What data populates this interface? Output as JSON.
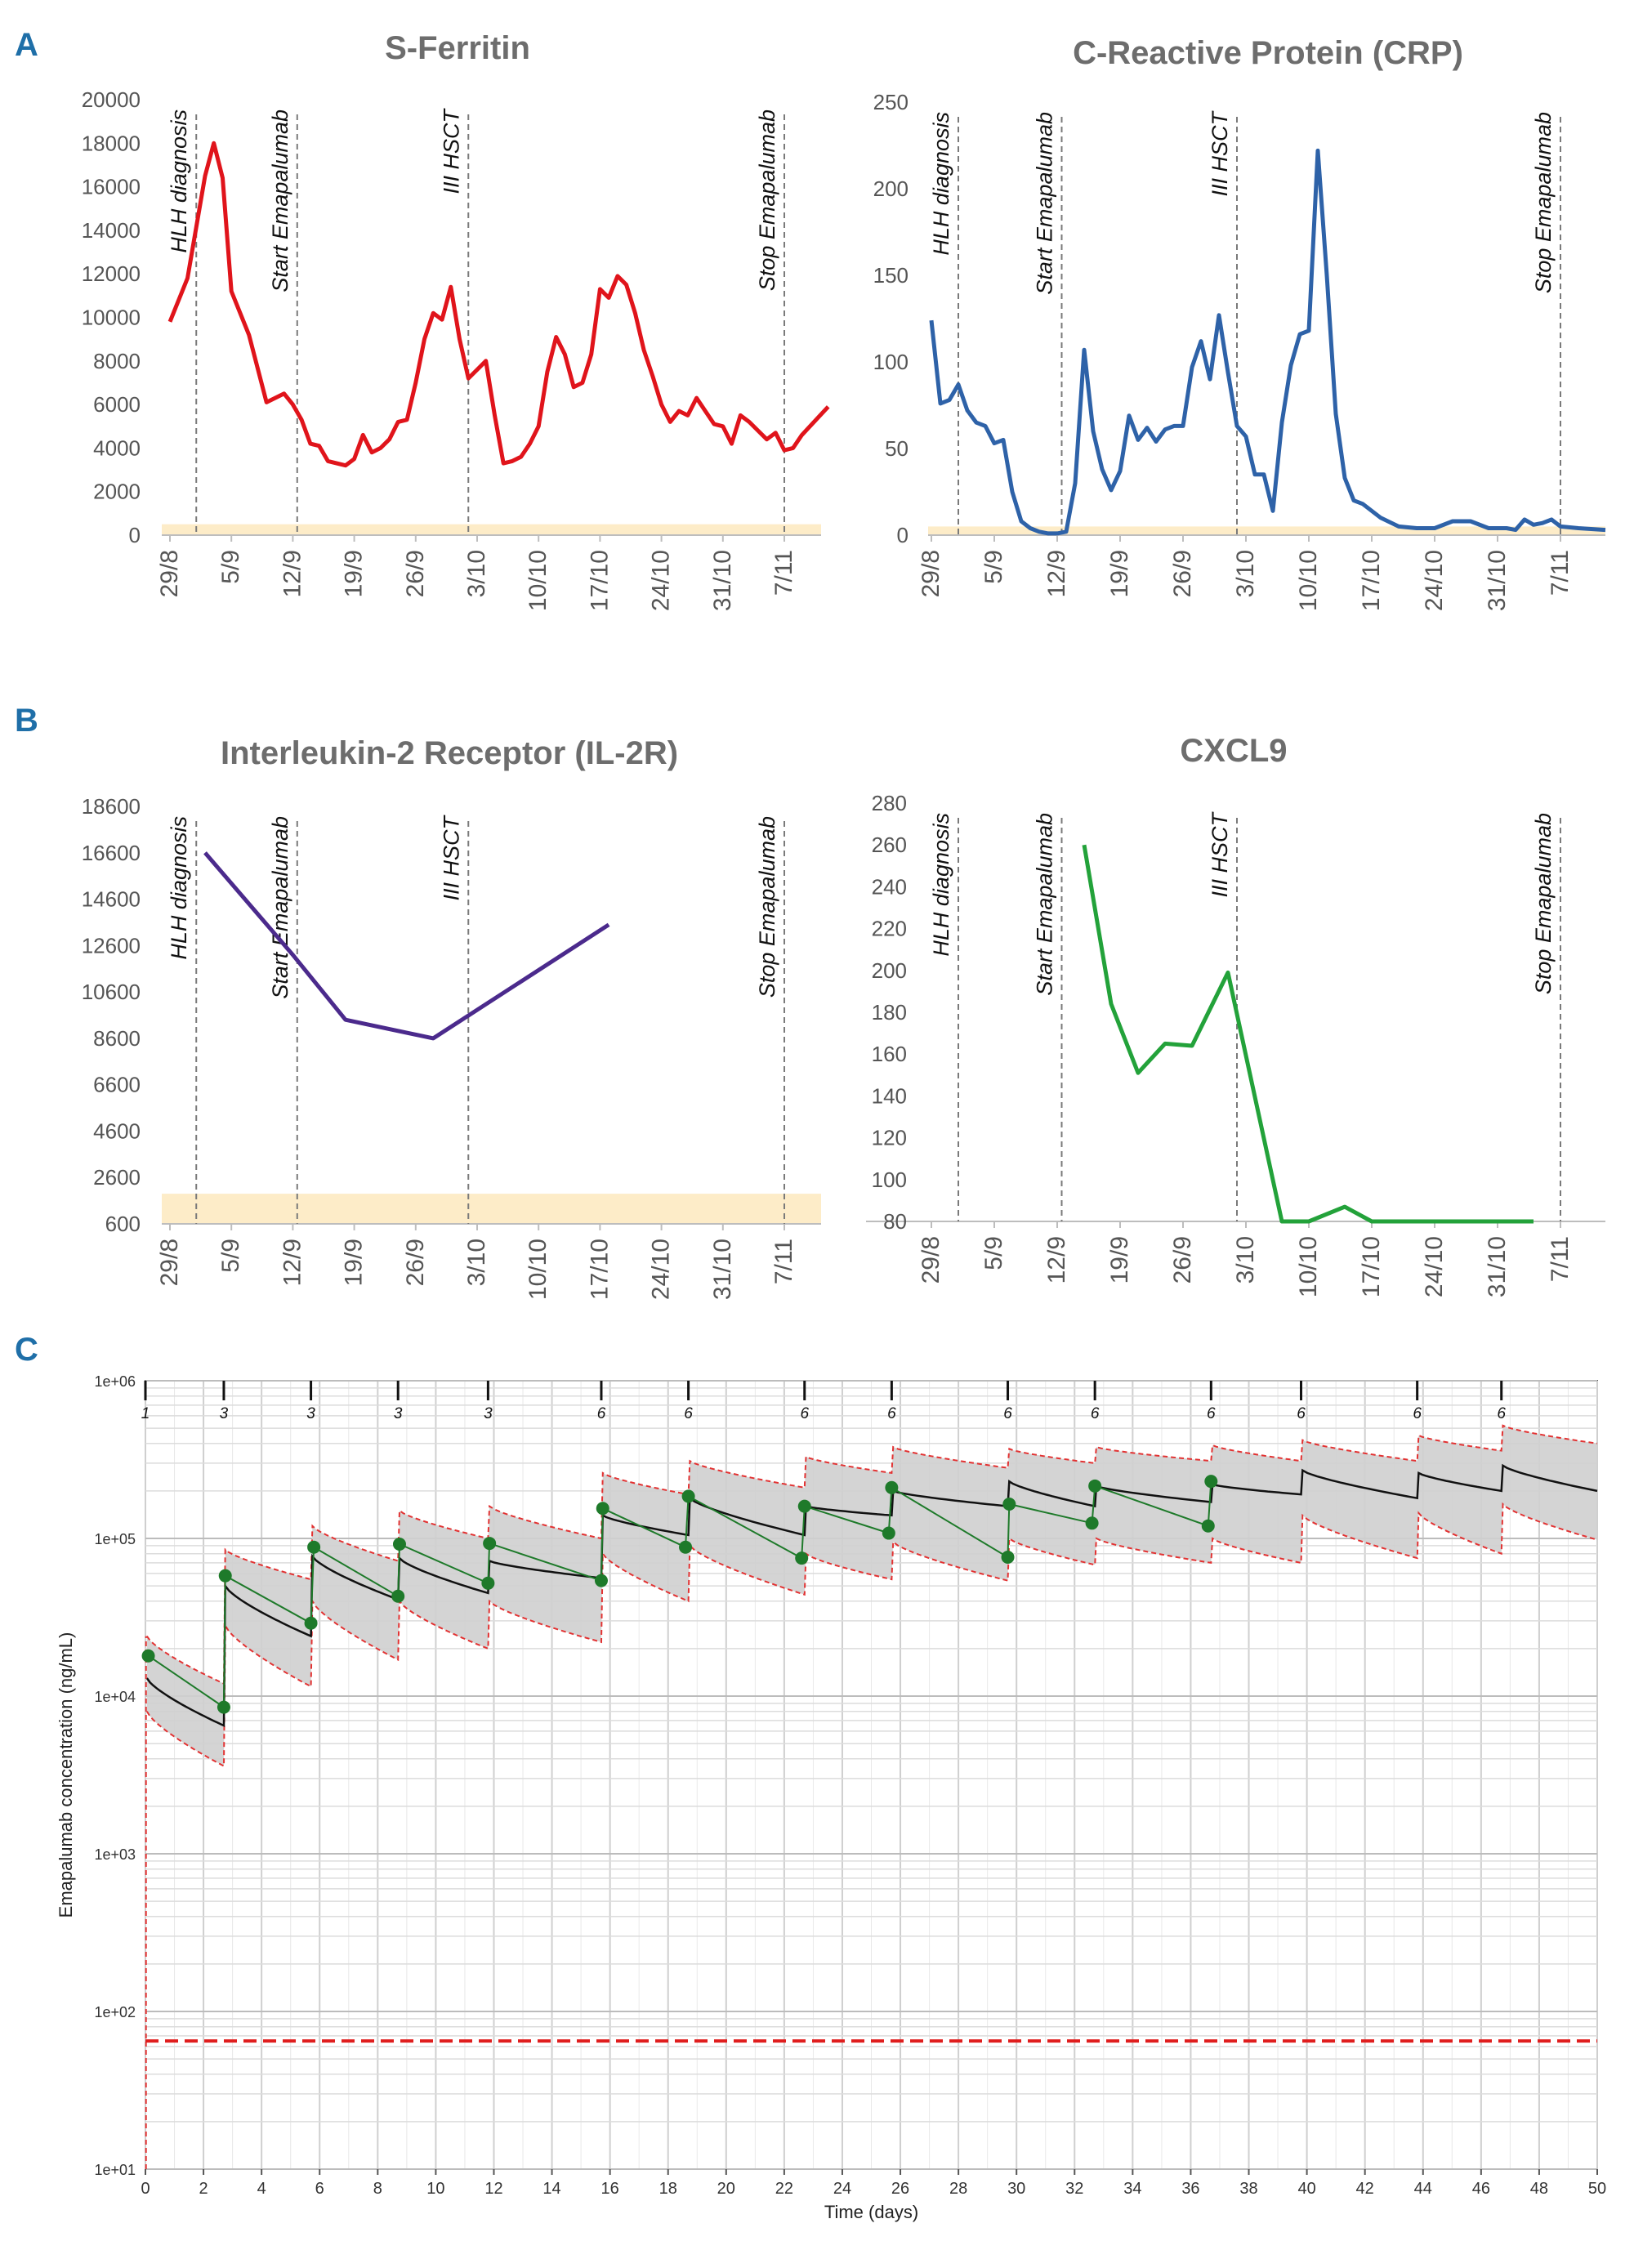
{
  "panel_labels": [
    "A",
    "B",
    "C"
  ],
  "colors": {
    "ferritin": "#e0141b",
    "crp": "#2e62a8",
    "il2r": "#4b2a8c",
    "cxcl9": "#23a23a",
    "pk_band": "#cfcfcf",
    "pk_band_edge": "#e23232",
    "pk_obs": "#1e7a2a",
    "normal_range": "#fdecc8",
    "event_line": "#7a7a7a"
  },
  "shared": {
    "date_ticks": [
      "29/8",
      "5/9",
      "12/9",
      "19/9",
      "26/9",
      "3/10",
      "10/10",
      "17/10",
      "24/10",
      "31/10",
      "7/11"
    ],
    "events": [
      {
        "label": "HLH diagnosis",
        "day": 3
      },
      {
        "label": "Start Emapalumab",
        "day": 14.5
      },
      {
        "label": "III HSCT",
        "day": 34
      },
      {
        "label": "Stop Emapalumab",
        "day": 70
      }
    ]
  },
  "chart_data": [
    {
      "id": "ferritin",
      "type": "line",
      "title": "S-Ferritin",
      "xlabel": "",
      "ylabel": "",
      "x_unit": "days since 29/8",
      "xlim": [
        0,
        75
      ],
      "ylim": [
        0,
        20000
      ],
      "yticks": [
        0,
        2000,
        4000,
        6000,
        8000,
        10000,
        12000,
        14000,
        16000,
        18000,
        20000
      ],
      "normal_range": [
        0,
        500
      ],
      "series": [
        {
          "name": "S-Ferritin",
          "x": [
            0,
            2,
            4,
            5,
            6,
            7,
            9,
            11,
            13,
            14,
            15,
            16,
            17,
            18,
            19,
            20,
            21,
            22,
            23,
            24,
            25,
            26,
            27,
            28,
            29,
            30,
            31,
            32,
            33,
            34,
            35,
            36,
            37,
            38,
            39,
            40,
            41,
            42,
            43,
            44,
            45,
            46,
            47,
            48,
            49,
            50,
            51,
            52,
            53,
            54,
            55,
            56,
            57,
            58,
            59,
            60,
            61,
            62,
            63,
            64,
            65,
            66,
            67,
            68,
            69,
            70,
            71,
            72,
            75
          ],
          "y": [
            9800,
            11800,
            16500,
            18000,
            16400,
            11200,
            9200,
            6100,
            6500,
            6000,
            5300,
            4200,
            4100,
            3400,
            3300,
            3200,
            3500,
            4600,
            3800,
            4000,
            4400,
            5200,
            5300,
            7000,
            9000,
            10200,
            9900,
            11400,
            9000,
            7200,
            7600,
            8000,
            5500,
            3300,
            3400,
            3600,
            4200,
            5000,
            7500,
            9100,
            8300,
            6800,
            7000,
            8300,
            11300,
            10900,
            11900,
            11500,
            10200,
            8500,
            7300,
            6000,
            5200,
            5700,
            5500,
            6300,
            5700,
            5100,
            5000,
            4200,
            5500,
            5200,
            4800,
            4400,
            4700,
            3900,
            4000,
            4600,
            5900
          ]
        }
      ]
    },
    {
      "id": "crp",
      "type": "line",
      "title": "C-Reactive Protein (CRP)",
      "xlabel": "",
      "ylabel": "",
      "x_unit": "days since 29/8",
      "xlim": [
        0,
        76
      ],
      "ylim": [
        0,
        250
      ],
      "yticks": [
        0,
        50,
        100,
        150,
        200,
        250
      ],
      "normal_range": [
        0,
        5
      ],
      "series": [
        {
          "name": "CRP",
          "x": [
            0,
            1,
            2,
            3,
            4,
            5,
            6,
            7,
            8,
            9,
            10,
            11,
            12,
            13,
            14,
            15,
            16,
            17,
            18,
            19,
            20,
            21,
            22,
            23,
            24,
            25,
            26,
            27,
            28,
            29,
            30,
            31,
            32,
            33,
            34,
            35,
            36,
            37,
            38,
            39,
            40,
            41,
            42,
            43,
            44,
            45,
            46,
            47,
            48,
            50,
            52,
            54,
            56,
            58,
            60,
            62,
            64,
            65,
            66,
            67,
            68,
            69,
            70,
            72,
            75
          ],
          "y": [
            124,
            76,
            78,
            87,
            72,
            65,
            63,
            53,
            55,
            25,
            8,
            4,
            2,
            1,
            1,
            2,
            30,
            107,
            60,
            38,
            26,
            37,
            69,
            55,
            62,
            54,
            61,
            63,
            63,
            97,
            112,
            90,
            127,
            94,
            63,
            57,
            35,
            35,
            14,
            65,
            98,
            116,
            118,
            222,
            150,
            70,
            33,
            20,
            18,
            10,
            5,
            4,
            4,
            8,
            8,
            4,
            4,
            3,
            9,
            6,
            7,
            9,
            5,
            4,
            3
          ]
        }
      ]
    },
    {
      "id": "il2r",
      "type": "line",
      "title": "Interleukin-2 Receptor (IL-2R)",
      "xlabel": "",
      "ylabel": "",
      "x_unit": "days since 29/8",
      "xlim": [
        0,
        75
      ],
      "ylim": [
        600,
        18600
      ],
      "yticks": [
        600,
        2600,
        4600,
        6600,
        8600,
        10600,
        12600,
        14600,
        16600,
        18600
      ],
      "normal_range": [
        600,
        1900
      ],
      "series": [
        {
          "name": "IL-2R",
          "x": [
            4,
            14,
            20,
            30,
            50
          ],
          "y": [
            16600,
            12200,
            9400,
            8600,
            13500
          ]
        }
      ]
    },
    {
      "id": "cxcl9",
      "type": "line",
      "title": "CXCL9",
      "xlabel": "",
      "ylabel": "",
      "x_unit": "days since 29/8",
      "xlim": [
        0,
        75
      ],
      "ylim": [
        80,
        280
      ],
      "yticks": [
        80,
        100,
        120,
        140,
        160,
        180,
        200,
        220,
        240,
        260,
        280
      ],
      "series": [
        {
          "name": "CXCL9",
          "x": [
            17,
            20,
            23,
            26,
            29,
            33,
            39,
            42,
            46,
            49,
            67
          ],
          "y": [
            260,
            184,
            151,
            165,
            164,
            199,
            80,
            80,
            87,
            80,
            80
          ]
        }
      ]
    },
    {
      "id": "pk",
      "type": "line",
      "title": "",
      "xlabel": "Time (days)",
      "ylabel": "Emapalumab concentration (ng/mL)",
      "xlim": [
        0,
        50
      ],
      "ylim": [
        10,
        1000000
      ],
      "y_scale": "log",
      "xticks": [
        0,
        2,
        4,
        6,
        8,
        10,
        12,
        14,
        16,
        18,
        20,
        22,
        24,
        26,
        28,
        30,
        32,
        34,
        36,
        38,
        40,
        42,
        44,
        46,
        48,
        50
      ],
      "ytick_labels": [
        {
          "value": 10,
          "label": "1e+01"
        },
        {
          "value": 100,
          "label": "1e+02"
        },
        {
          "value": 1000,
          "label": "1e+03"
        },
        {
          "value": 10000,
          "label": "1e+04"
        },
        {
          "value": 100000,
          "label": "1e+05"
        },
        {
          "value": 1000000,
          "label": "1e+06"
        }
      ],
      "threshold": 65,
      "doses": [
        {
          "day": 0,
          "label": "1"
        },
        {
          "day": 2.7,
          "label": "3"
        },
        {
          "day": 5.7,
          "label": "3"
        },
        {
          "day": 8.7,
          "label": "3"
        },
        {
          "day": 11.8,
          "label": "3"
        },
        {
          "day": 15.7,
          "label": "6"
        },
        {
          "day": 18.7,
          "label": "6"
        },
        {
          "day": 22.7,
          "label": "6"
        },
        {
          "day": 25.7,
          "label": "6"
        },
        {
          "day": 29.7,
          "label": "6"
        },
        {
          "day": 32.7,
          "label": "6"
        },
        {
          "day": 36.7,
          "label": "6"
        },
        {
          "day": 39.8,
          "label": "6"
        },
        {
          "day": 43.8,
          "label": "6"
        },
        {
          "day": 46.7,
          "label": "6"
        }
      ],
      "model": {
        "median_peaks": [
          13000,
          50000,
          77000,
          75000,
          72000,
          140000,
          180000,
          160000,
          200000,
          230000,
          215000,
          220000,
          270000,
          260000,
          290000
        ],
        "median_troughs": [
          6500,
          24000,
          41000,
          45000,
          56000,
          105000,
          105000,
          140000,
          160000,
          160000,
          170000,
          190000,
          180000,
          200000,
          200000
        ],
        "upper_peaks": [
          24000,
          85000,
          120000,
          150000,
          160000,
          260000,
          310000,
          330000,
          380000,
          370000,
          380000,
          390000,
          420000,
          450000,
          520000
        ],
        "upper_troughs": [
          12000,
          55000,
          72000,
          100000,
          100000,
          190000,
          210000,
          260000,
          280000,
          300000,
          310000,
          310000,
          310000,
          360000,
          400000
        ],
        "lower_peaks": [
          8000,
          28000,
          40000,
          40000,
          40000,
          80000,
          90000,
          80000,
          95000,
          100000,
          100000,
          100000,
          140000,
          145000,
          165000
        ],
        "lower_troughs": [
          3600,
          11500,
          17000,
          20000,
          22000,
          40000,
          44000,
          55000,
          54000,
          68000,
          70000,
          70000,
          75000,
          80000,
          98000
        ]
      },
      "observed": [
        {
          "x": 0.1,
          "y": 18000
        },
        {
          "x": 2.7,
          "y": 8500
        },
        {
          "x": 2.75,
          "y": 58000
        },
        {
          "x": 5.7,
          "y": 29000
        },
        {
          "x": 5.8,
          "y": 88000
        },
        {
          "x": 8.7,
          "y": 43000
        },
        {
          "x": 8.75,
          "y": 92000
        },
        {
          "x": 11.8,
          "y": 52000
        },
        {
          "x": 11.85,
          "y": 93000
        },
        {
          "x": 15.7,
          "y": 54000
        },
        {
          "x": 15.75,
          "y": 155000
        },
        {
          "x": 18.6,
          "y": 88000
        },
        {
          "x": 18.7,
          "y": 185000
        },
        {
          "x": 22.6,
          "y": 75000
        },
        {
          "x": 22.7,
          "y": 160000
        },
        {
          "x": 25.6,
          "y": 108000
        },
        {
          "x": 25.7,
          "y": 210000
        },
        {
          "x": 29.7,
          "y": 76000
        },
        {
          "x": 29.75,
          "y": 165000
        },
        {
          "x": 32.6,
          "y": 125000
        },
        {
          "x": 32.7,
          "y": 215000
        },
        {
          "x": 36.6,
          "y": 120000
        },
        {
          "x": 36.7,
          "y": 230000
        }
      ]
    }
  ]
}
